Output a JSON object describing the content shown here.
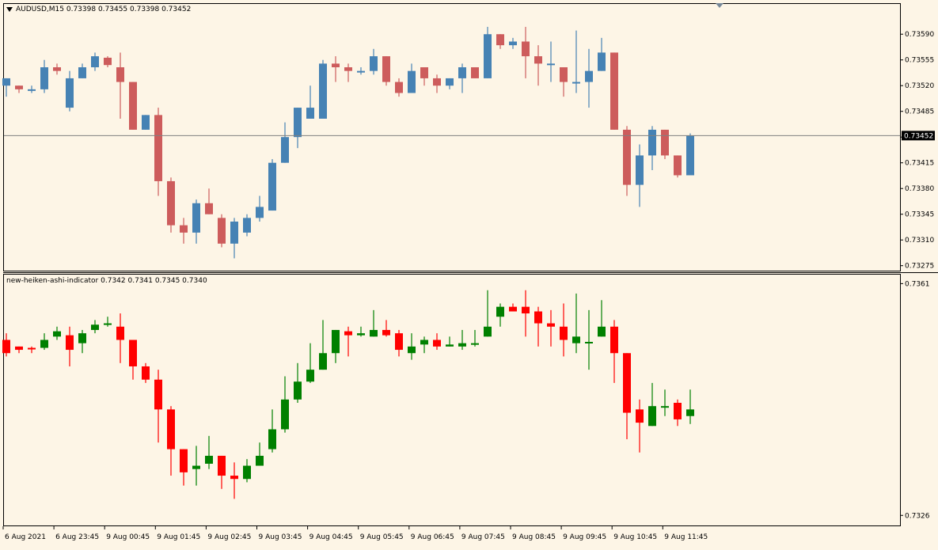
{
  "symbol_header": {
    "symbol": "AUDUSD,M15",
    "ohlc": "0.73398 0.73455 0.73398 0.73452"
  },
  "indicator_header": {
    "name": "new-heiken-ashi-indicator",
    "values": "0.7342 0.7341 0.7345 0.7340"
  },
  "colors": {
    "background": "#fdf5e6",
    "bull_main": "#4682b4",
    "bear_main": "#cd5c5c",
    "bull_ha": "#008000",
    "bear_ha": "#ff0000",
    "price_tag_bg": "#000000",
    "price_tag_fg": "#ffffff"
  },
  "chart_data": [
    {
      "type": "candlestick",
      "title": "AUDUSD,M15",
      "y_ticks": [
        "0.73590",
        "0.73555",
        "0.73520",
        "0.73485",
        "0.73450",
        "0.73415",
        "0.73380",
        "0.73345",
        "0.73310",
        "0.73275"
      ],
      "ylim": [
        0.73265,
        0.73615
      ],
      "current_price": "0.73452",
      "current_price_value": 0.73452,
      "candles": [
        {
          "o": 0.7352,
          "h": 0.7353,
          "l": 0.73505,
          "c": 0.7353
        },
        {
          "o": 0.7352,
          "h": 0.7352,
          "l": 0.7351,
          "c": 0.73515
        },
        {
          "o": 0.73515,
          "h": 0.7352,
          "l": 0.7351,
          "c": 0.73515
        },
        {
          "o": 0.73515,
          "h": 0.73555,
          "l": 0.7351,
          "c": 0.73545
        },
        {
          "o": 0.73545,
          "h": 0.7355,
          "l": 0.73535,
          "c": 0.7354
        },
        {
          "o": 0.7349,
          "h": 0.7354,
          "l": 0.73485,
          "c": 0.7353
        },
        {
          "o": 0.7353,
          "h": 0.7355,
          "l": 0.7353,
          "c": 0.73545
        },
        {
          "o": 0.73545,
          "h": 0.73565,
          "l": 0.7354,
          "c": 0.7356
        },
        {
          "o": 0.73558,
          "h": 0.7356,
          "l": 0.73545,
          "c": 0.73548
        },
        {
          "o": 0.73545,
          "h": 0.73565,
          "l": 0.73475,
          "c": 0.73525
        },
        {
          "o": 0.73525,
          "h": 0.73525,
          "l": 0.7346,
          "c": 0.7346
        },
        {
          "o": 0.7346,
          "h": 0.7348,
          "l": 0.7346,
          "c": 0.7348
        },
        {
          "o": 0.7348,
          "h": 0.7349,
          "l": 0.7337,
          "c": 0.7339
        },
        {
          "o": 0.7339,
          "h": 0.73395,
          "l": 0.7332,
          "c": 0.7333
        },
        {
          "o": 0.7333,
          "h": 0.7334,
          "l": 0.73305,
          "c": 0.7332
        },
        {
          "o": 0.7332,
          "h": 0.73365,
          "l": 0.73305,
          "c": 0.7336
        },
        {
          "o": 0.7336,
          "h": 0.7338,
          "l": 0.73345,
          "c": 0.73345
        },
        {
          "o": 0.7334,
          "h": 0.73345,
          "l": 0.733,
          "c": 0.73305
        },
        {
          "o": 0.73305,
          "h": 0.7334,
          "l": 0.73285,
          "c": 0.73335
        },
        {
          "o": 0.7332,
          "h": 0.73345,
          "l": 0.73315,
          "c": 0.7334
        },
        {
          "o": 0.7334,
          "h": 0.7337,
          "l": 0.73335,
          "c": 0.73355
        },
        {
          "o": 0.7335,
          "h": 0.7342,
          "l": 0.7335,
          "c": 0.73415
        },
        {
          "o": 0.73415,
          "h": 0.7347,
          "l": 0.73415,
          "c": 0.7345
        },
        {
          "o": 0.7345,
          "h": 0.7349,
          "l": 0.73435,
          "c": 0.7349
        },
        {
          "o": 0.73475,
          "h": 0.7352,
          "l": 0.73475,
          "c": 0.7349
        },
        {
          "o": 0.73475,
          "h": 0.73555,
          "l": 0.73475,
          "c": 0.7355
        },
        {
          "o": 0.7355,
          "h": 0.7356,
          "l": 0.73525,
          "c": 0.73545
        },
        {
          "o": 0.73545,
          "h": 0.7355,
          "l": 0.73525,
          "c": 0.7354
        },
        {
          "o": 0.7354,
          "h": 0.73545,
          "l": 0.73535,
          "c": 0.7354
        },
        {
          "o": 0.7354,
          "h": 0.7357,
          "l": 0.73535,
          "c": 0.7356
        },
        {
          "o": 0.7356,
          "h": 0.7356,
          "l": 0.7352,
          "c": 0.73525
        },
        {
          "o": 0.73525,
          "h": 0.7353,
          "l": 0.73505,
          "c": 0.7351
        },
        {
          "o": 0.7351,
          "h": 0.7355,
          "l": 0.7351,
          "c": 0.7354
        },
        {
          "o": 0.73545,
          "h": 0.73545,
          "l": 0.7352,
          "c": 0.7353
        },
        {
          "o": 0.7353,
          "h": 0.73535,
          "l": 0.7351,
          "c": 0.7352
        },
        {
          "o": 0.7352,
          "h": 0.7353,
          "l": 0.73515,
          "c": 0.7353
        },
        {
          "o": 0.7353,
          "h": 0.7355,
          "l": 0.7351,
          "c": 0.73545
        },
        {
          "o": 0.73545,
          "h": 0.73545,
          "l": 0.7353,
          "c": 0.7353
        },
        {
          "o": 0.7353,
          "h": 0.736,
          "l": 0.7353,
          "c": 0.7359
        },
        {
          "o": 0.7359,
          "h": 0.7359,
          "l": 0.7357,
          "c": 0.73575
        },
        {
          "o": 0.73575,
          "h": 0.73585,
          "l": 0.7357,
          "c": 0.7358
        },
        {
          "o": 0.7358,
          "h": 0.736,
          "l": 0.7353,
          "c": 0.7356
        },
        {
          "o": 0.7356,
          "h": 0.73575,
          "l": 0.7352,
          "c": 0.7355
        },
        {
          "o": 0.7355,
          "h": 0.7358,
          "l": 0.73525,
          "c": 0.7355
        },
        {
          "o": 0.73545,
          "h": 0.73545,
          "l": 0.73505,
          "c": 0.73525
        },
        {
          "o": 0.73525,
          "h": 0.73595,
          "l": 0.7351,
          "c": 0.73525
        },
        {
          "o": 0.73525,
          "h": 0.7357,
          "l": 0.7349,
          "c": 0.7354
        },
        {
          "o": 0.7354,
          "h": 0.73585,
          "l": 0.7354,
          "c": 0.73565
        },
        {
          "o": 0.73565,
          "h": 0.73565,
          "l": 0.7346,
          "c": 0.7346
        },
        {
          "o": 0.7346,
          "h": 0.73465,
          "l": 0.7337,
          "c": 0.73385
        },
        {
          "o": 0.73385,
          "h": 0.7344,
          "l": 0.73355,
          "c": 0.73425
        },
        {
          "o": 0.73425,
          "h": 0.73465,
          "l": 0.73405,
          "c": 0.7346
        },
        {
          "o": 0.7346,
          "h": 0.7346,
          "l": 0.7342,
          "c": 0.73425
        },
        {
          "o": 0.73425,
          "h": 0.73425,
          "l": 0.73395,
          "c": 0.73398
        },
        {
          "o": 0.73398,
          "h": 0.73455,
          "l": 0.73398,
          "c": 0.73452
        }
      ]
    },
    {
      "type": "candlestick",
      "title": "new-heiken-ashi-indicator",
      "y_ticks": [
        "0.7361",
        "0.7326"
      ],
      "ylim": [
        0.7324,
        0.7362
      ],
      "candles": [
        {
          "o": 0.73525,
          "h": 0.73535,
          "l": 0.735,
          "c": 0.73505
        },
        {
          "o": 0.73515,
          "h": 0.73515,
          "l": 0.73505,
          "c": 0.7351
        },
        {
          "o": 0.73513,
          "h": 0.73515,
          "l": 0.73505,
          "c": 0.73512
        },
        {
          "o": 0.73513,
          "h": 0.73535,
          "l": 0.7351,
          "c": 0.73525
        },
        {
          "o": 0.7353,
          "h": 0.73545,
          "l": 0.73525,
          "c": 0.73538
        },
        {
          "o": 0.73532,
          "h": 0.73545,
          "l": 0.73485,
          "c": 0.7351
        },
        {
          "o": 0.7352,
          "h": 0.7354,
          "l": 0.73505,
          "c": 0.73535
        },
        {
          "o": 0.7354,
          "h": 0.73555,
          "l": 0.73535,
          "c": 0.73548
        },
        {
          "o": 0.73548,
          "h": 0.7356,
          "l": 0.73545,
          "c": 0.7355
        },
        {
          "o": 0.73545,
          "h": 0.73565,
          "l": 0.7349,
          "c": 0.73525
        },
        {
          "o": 0.73525,
          "h": 0.73525,
          "l": 0.73465,
          "c": 0.73485
        },
        {
          "o": 0.73485,
          "h": 0.7349,
          "l": 0.7346,
          "c": 0.73465
        },
        {
          "o": 0.73465,
          "h": 0.7348,
          "l": 0.7337,
          "c": 0.7342
        },
        {
          "o": 0.7342,
          "h": 0.73425,
          "l": 0.7332,
          "c": 0.7336
        },
        {
          "o": 0.7336,
          "h": 0.7336,
          "l": 0.73305,
          "c": 0.73325
        },
        {
          "o": 0.7333,
          "h": 0.73365,
          "l": 0.73305,
          "c": 0.73335
        },
        {
          "o": 0.73338,
          "h": 0.7338,
          "l": 0.7333,
          "c": 0.7335
        },
        {
          "o": 0.7335,
          "h": 0.7335,
          "l": 0.733,
          "c": 0.7332
        },
        {
          "o": 0.7332,
          "h": 0.7334,
          "l": 0.73285,
          "c": 0.73315
        },
        {
          "o": 0.73315,
          "h": 0.73345,
          "l": 0.7331,
          "c": 0.73335
        },
        {
          "o": 0.73335,
          "h": 0.7337,
          "l": 0.73335,
          "c": 0.7335
        },
        {
          "o": 0.7336,
          "h": 0.7342,
          "l": 0.73355,
          "c": 0.7339
        },
        {
          "o": 0.7339,
          "h": 0.7347,
          "l": 0.73385,
          "c": 0.73435
        },
        {
          "o": 0.73435,
          "h": 0.7349,
          "l": 0.7343,
          "c": 0.73462
        },
        {
          "o": 0.73462,
          "h": 0.7352,
          "l": 0.7346,
          "c": 0.7348
        },
        {
          "o": 0.7348,
          "h": 0.73555,
          "l": 0.7348,
          "c": 0.73505
        },
        {
          "o": 0.73505,
          "h": 0.7354,
          "l": 0.7349,
          "c": 0.7354
        },
        {
          "o": 0.73538,
          "h": 0.73545,
          "l": 0.735,
          "c": 0.73532
        },
        {
          "o": 0.73532,
          "h": 0.73545,
          "l": 0.7353,
          "c": 0.73535
        },
        {
          "o": 0.7353,
          "h": 0.7357,
          "l": 0.7353,
          "c": 0.7354
        },
        {
          "o": 0.7354,
          "h": 0.73555,
          "l": 0.7353,
          "c": 0.73532
        },
        {
          "o": 0.73535,
          "h": 0.7354,
          "l": 0.735,
          "c": 0.7351
        },
        {
          "o": 0.73505,
          "h": 0.73535,
          "l": 0.73495,
          "c": 0.73515
        },
        {
          "o": 0.73518,
          "h": 0.7353,
          "l": 0.73505,
          "c": 0.73525
        },
        {
          "o": 0.73525,
          "h": 0.73535,
          "l": 0.7351,
          "c": 0.73515
        },
        {
          "o": 0.73515,
          "h": 0.7353,
          "l": 0.73515,
          "c": 0.73518
        },
        {
          "o": 0.73515,
          "h": 0.7354,
          "l": 0.7351,
          "c": 0.7352
        },
        {
          "o": 0.7352,
          "h": 0.7354,
          "l": 0.73515,
          "c": 0.7352
        },
        {
          "o": 0.7353,
          "h": 0.736,
          "l": 0.7353,
          "c": 0.73545
        },
        {
          "o": 0.7356,
          "h": 0.7358,
          "l": 0.73545,
          "c": 0.73575
        },
        {
          "o": 0.73575,
          "h": 0.7358,
          "l": 0.73568,
          "c": 0.73568
        },
        {
          "o": 0.73575,
          "h": 0.736,
          "l": 0.7353,
          "c": 0.73565
        },
        {
          "o": 0.73568,
          "h": 0.73575,
          "l": 0.73515,
          "c": 0.7355
        },
        {
          "o": 0.7355,
          "h": 0.7357,
          "l": 0.73515,
          "c": 0.73545
        },
        {
          "o": 0.73545,
          "h": 0.7358,
          "l": 0.735,
          "c": 0.73525
        },
        {
          "o": 0.7352,
          "h": 0.73595,
          "l": 0.73505,
          "c": 0.7353
        },
        {
          "o": 0.73522,
          "h": 0.7357,
          "l": 0.7348,
          "c": 0.73522
        },
        {
          "o": 0.7353,
          "h": 0.73585,
          "l": 0.7353,
          "c": 0.73545
        },
        {
          "o": 0.73545,
          "h": 0.73555,
          "l": 0.7346,
          "c": 0.73505
        },
        {
          "o": 0.73505,
          "h": 0.73505,
          "l": 0.73375,
          "c": 0.73415
        },
        {
          "o": 0.7342,
          "h": 0.73435,
          "l": 0.73355,
          "c": 0.734
        },
        {
          "o": 0.73395,
          "h": 0.7346,
          "l": 0.73395,
          "c": 0.73425
        },
        {
          "o": 0.73425,
          "h": 0.7345,
          "l": 0.7341,
          "c": 0.73425
        },
        {
          "o": 0.7343,
          "h": 0.73435,
          "l": 0.73395,
          "c": 0.73405
        },
        {
          "o": 0.7341,
          "h": 0.7345,
          "l": 0.73398,
          "c": 0.7342
        }
      ]
    }
  ],
  "time_axis": {
    "labels": [
      "6 Aug 2021",
      "6 Aug 23:45",
      "9 Aug 00:45",
      "9 Aug 01:45",
      "9 Aug 02:45",
      "9 Aug 03:45",
      "9 Aug 04:45",
      "9 Aug 05:45",
      "9 Aug 06:45",
      "9 Aug 07:45",
      "9 Aug 08:45",
      "9 Aug 09:45",
      "9 Aug 10:45",
      "9 Aug 11:45"
    ]
  }
}
